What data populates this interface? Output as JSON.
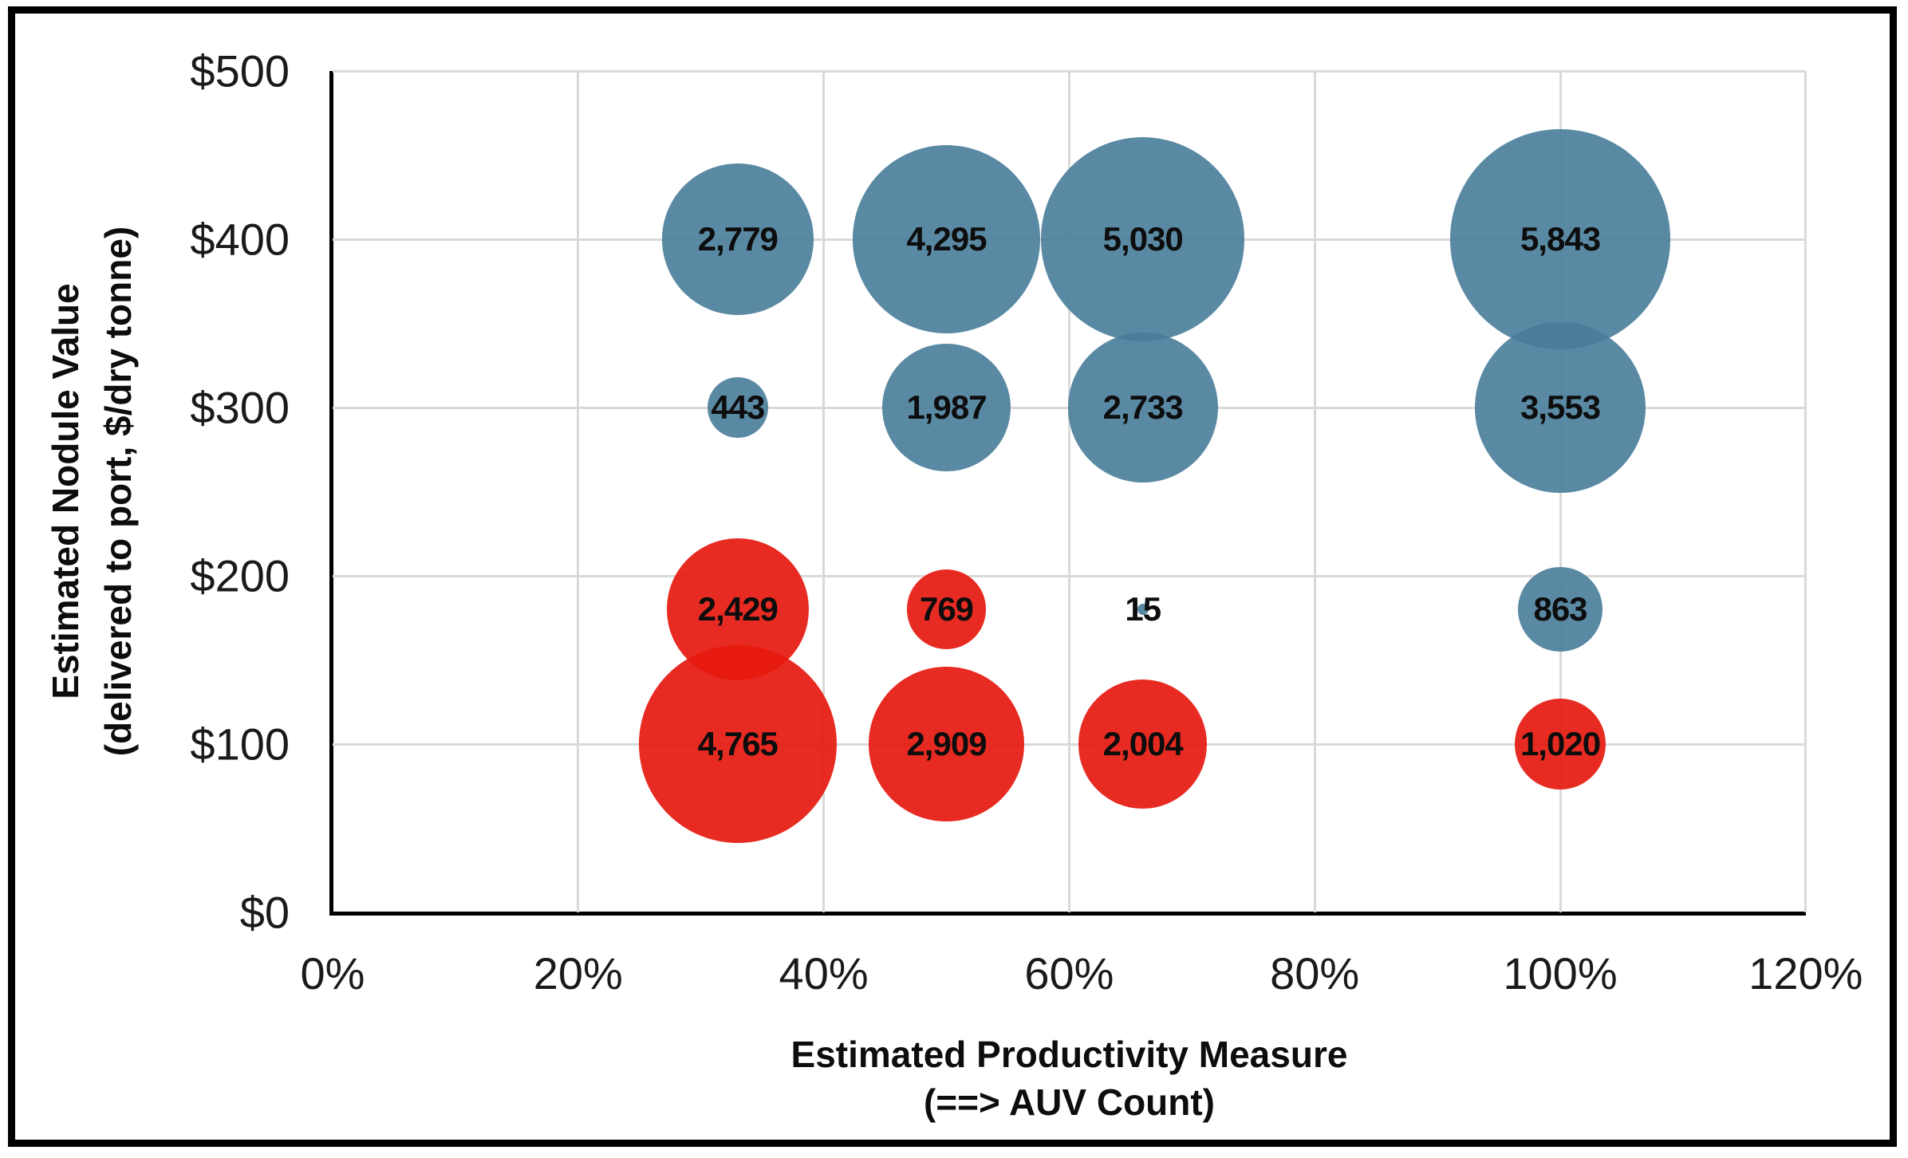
{
  "chart_data": {
    "type": "bubble",
    "title": "",
    "background": "#FFFFFF",
    "frame_border_color": "#000000",
    "gridline_color": "#D9D9D9",
    "axis_line_color": "#000000",
    "data_label_color": "#0D0D0D",
    "grid": true,
    "legend": "none",
    "x_axis": {
      "title_line1": "Estimated Productivity Measure",
      "title_line2": "(==> AUV Count)",
      "min": 0,
      "max": 120,
      "tick_values": [
        0,
        20,
        40,
        60,
        80,
        100,
        120
      ],
      "tick_labels": [
        "0%",
        "20%",
        "40%",
        "60%",
        "80%",
        "100%",
        "120%"
      ]
    },
    "y_axis": {
      "title_line1": "Estimated Nodule Value",
      "title_line2": "(delivered to port, $/dry tonne)",
      "min": 0,
      "max": 500,
      "tick_values": [
        0,
        100,
        200,
        300,
        400,
        500
      ],
      "tick_labels": [
        "$0",
        "$100",
        "$200",
        "$300",
        "$400",
        "$500"
      ]
    },
    "size_encoding": "bubble area proportional to value",
    "series": [
      {
        "name": "blue",
        "color": "#4C7C99",
        "fill": "rgba(72,124,153,0.9)",
        "points": [
          {
            "x": 33,
            "y": 400,
            "value": 2779,
            "label": "2,779"
          },
          {
            "x": 50,
            "y": 400,
            "value": 4295,
            "label": "4,295"
          },
          {
            "x": 66,
            "y": 400,
            "value": 5030,
            "label": "5,030"
          },
          {
            "x": 100,
            "y": 400,
            "value": 5843,
            "label": "5,843"
          },
          {
            "x": 33,
            "y": 300,
            "value": 443,
            "label": "443"
          },
          {
            "x": 50,
            "y": 300,
            "value": 1987,
            "label": "1,987"
          },
          {
            "x": 66,
            "y": 300,
            "value": 2733,
            "label": "2,733"
          },
          {
            "x": 100,
            "y": 300,
            "value": 3553,
            "label": "3,553"
          },
          {
            "x": 66,
            "y": 180,
            "value": 15,
            "label": "15"
          },
          {
            "x": 100,
            "y": 180,
            "value": 863,
            "label": "863"
          }
        ]
      },
      {
        "name": "red",
        "color": "#E8291D",
        "fill": "rgba(230,25,15,0.92)",
        "points": [
          {
            "x": 33,
            "y": 180,
            "value": 2429,
            "label": "2,429"
          },
          {
            "x": 50,
            "y": 180,
            "value": 769,
            "label": "769"
          },
          {
            "x": 33,
            "y": 100,
            "value": 4765,
            "label": "4,765"
          },
          {
            "x": 50,
            "y": 100,
            "value": 2909,
            "label": "2,909"
          },
          {
            "x": 66,
            "y": 100,
            "value": 2004,
            "label": "2,004"
          },
          {
            "x": 100,
            "y": 100,
            "value": 1020,
            "label": "1,020"
          }
        ]
      }
    ]
  }
}
